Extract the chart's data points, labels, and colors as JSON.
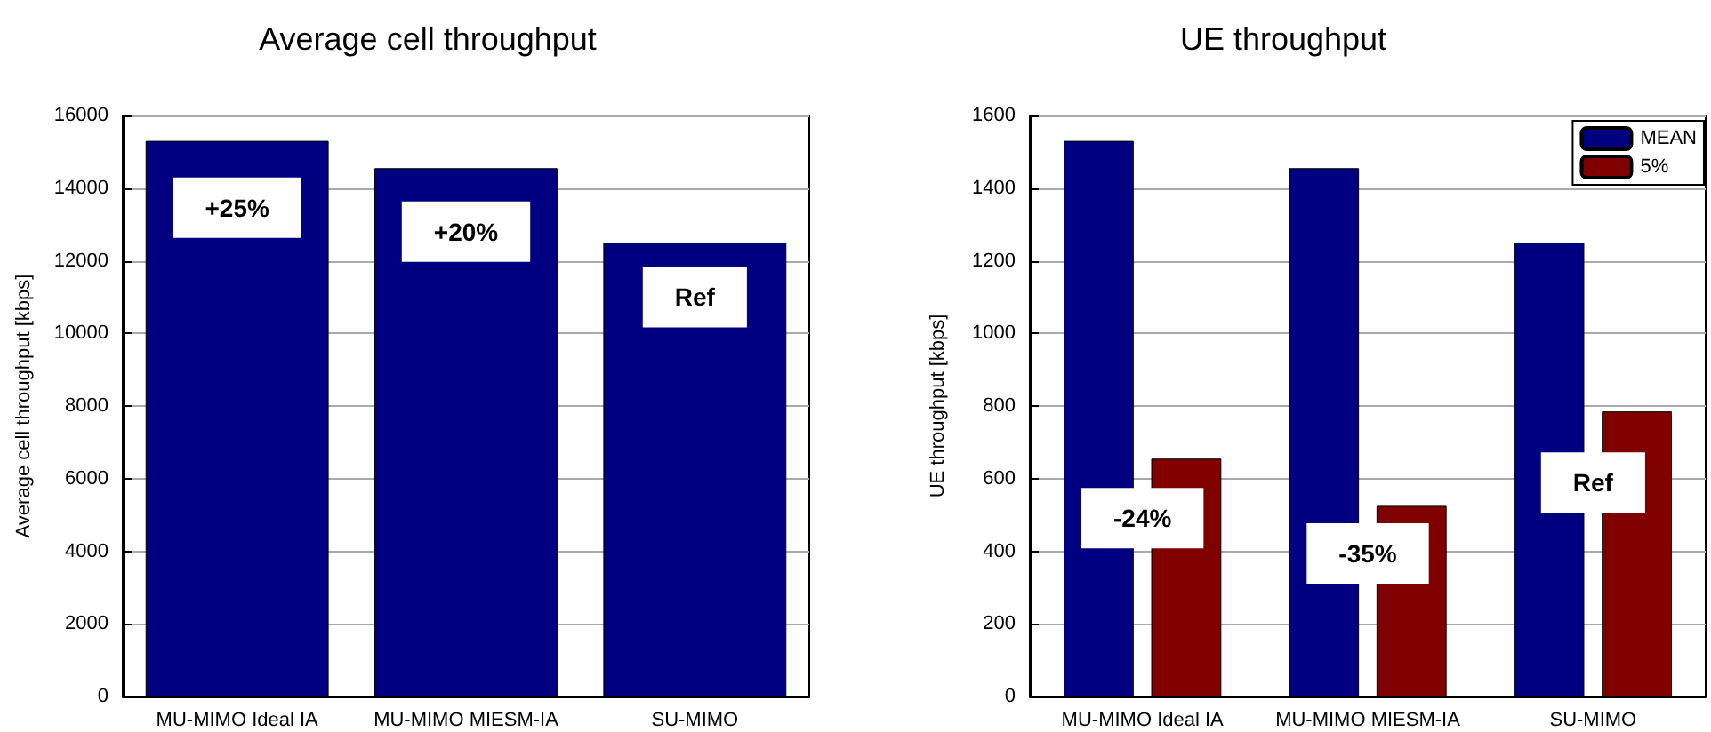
{
  "chart_data": [
    {
      "type": "bar",
      "title": "Average cell throughput",
      "ylabel": "Average cell throughput [kbps]",
      "categories": [
        "MU-MIMO Ideal IA",
        "MU-MIMO MIESM-IA",
        "SU-MIMO"
      ],
      "series": [
        {
          "color": "#000080",
          "values": [
            15300,
            14550,
            12500
          ]
        }
      ],
      "ylim": [
        0,
        16000
      ],
      "yticks": [
        0,
        2000,
        4000,
        6000,
        8000,
        10000,
        12000,
        14000,
        16000
      ],
      "grid": "y",
      "legend": false,
      "annotations": [
        "+25%",
        "+20%",
        "Ref"
      ]
    },
    {
      "type": "bar",
      "title": "UE throughput",
      "ylabel": "UE throughput [kbps]",
      "categories": [
        "MU-MIMO Ideal IA",
        "MU-MIMO MIESM-IA",
        "SU-MIMO"
      ],
      "series": [
        {
          "name": "MEAN",
          "color": "#000080",
          "values": [
            1530,
            1455,
            1250
          ]
        },
        {
          "name": "5%",
          "color": "#800000",
          "values": [
            655,
            525,
            785
          ]
        }
      ],
      "ylim": [
        0,
        1600
      ],
      "yticks": [
        0,
        200,
        400,
        600,
        800,
        1000,
        1200,
        1400,
        1600
      ],
      "grid": "y",
      "legend": "top right",
      "annotations": [
        "-24%",
        "-35%",
        "Ref"
      ]
    }
  ]
}
